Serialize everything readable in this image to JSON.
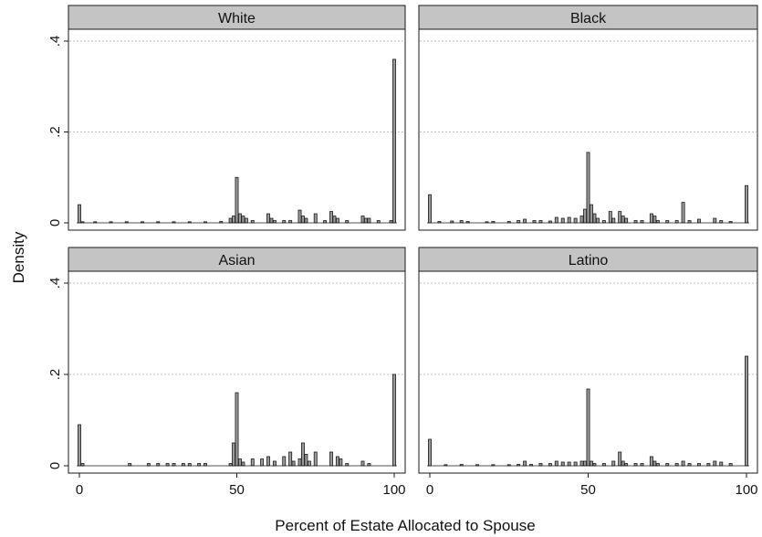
{
  "chart_data": {
    "type": "bar",
    "ylabel": "Density",
    "xlabel": "Percent of Estate Allocated to Spouse",
    "xlim": [
      0,
      100
    ],
    "ylim": [
      0,
      0.4
    ],
    "xticks": [
      0,
      50,
      100
    ],
    "yticks": [
      0,
      0.2,
      0.4
    ],
    "ytick_labels": [
      "0",
      ".2",
      ".4"
    ],
    "grid": "horizontal",
    "panels": [
      {
        "title": "White",
        "bars": [
          {
            "x": 0,
            "y": 0.04
          },
          {
            "x": 1,
            "y": 0.002
          },
          {
            "x": 5,
            "y": 0.002
          },
          {
            "x": 10,
            "y": 0.002
          },
          {
            "x": 15,
            "y": 0.002
          },
          {
            "x": 20,
            "y": 0.002
          },
          {
            "x": 25,
            "y": 0.002
          },
          {
            "x": 30,
            "y": 0.002
          },
          {
            "x": 35,
            "y": 0.002
          },
          {
            "x": 40,
            "y": 0.002
          },
          {
            "x": 45,
            "y": 0.003
          },
          {
            "x": 48,
            "y": 0.01
          },
          {
            "x": 49,
            "y": 0.015
          },
          {
            "x": 50,
            "y": 0.1
          },
          {
            "x": 51,
            "y": 0.02
          },
          {
            "x": 52,
            "y": 0.015
          },
          {
            "x": 53,
            "y": 0.01
          },
          {
            "x": 55,
            "y": 0.005
          },
          {
            "x": 60,
            "y": 0.02
          },
          {
            "x": 61,
            "y": 0.01
          },
          {
            "x": 62,
            "y": 0.005
          },
          {
            "x": 65,
            "y": 0.005
          },
          {
            "x": 67,
            "y": 0.005
          },
          {
            "x": 70,
            "y": 0.028
          },
          {
            "x": 71,
            "y": 0.015
          },
          {
            "x": 72,
            "y": 0.01
          },
          {
            "x": 75,
            "y": 0.02
          },
          {
            "x": 78,
            "y": 0.005
          },
          {
            "x": 80,
            "y": 0.025
          },
          {
            "x": 81,
            "y": 0.015
          },
          {
            "x": 82,
            "y": 0.01
          },
          {
            "x": 85,
            "y": 0.005
          },
          {
            "x": 90,
            "y": 0.015
          },
          {
            "x": 91,
            "y": 0.01
          },
          {
            "x": 92,
            "y": 0.01
          },
          {
            "x": 95,
            "y": 0.005
          },
          {
            "x": 99,
            "y": 0.005
          },
          {
            "x": 100,
            "y": 0.36
          }
        ]
      },
      {
        "title": "Black",
        "bars": [
          {
            "x": 0,
            "y": 0.062
          },
          {
            "x": 3,
            "y": 0.003
          },
          {
            "x": 7,
            "y": 0.004
          },
          {
            "x": 10,
            "y": 0.005
          },
          {
            "x": 12,
            "y": 0.003
          },
          {
            "x": 18,
            "y": 0.002
          },
          {
            "x": 20,
            "y": 0.003
          },
          {
            "x": 25,
            "y": 0.003
          },
          {
            "x": 28,
            "y": 0.005
          },
          {
            "x": 30,
            "y": 0.008
          },
          {
            "x": 33,
            "y": 0.005
          },
          {
            "x": 35,
            "y": 0.005
          },
          {
            "x": 38,
            "y": 0.004
          },
          {
            "x": 40,
            "y": 0.012
          },
          {
            "x": 42,
            "y": 0.01
          },
          {
            "x": 44,
            "y": 0.012
          },
          {
            "x": 46,
            "y": 0.01
          },
          {
            "x": 48,
            "y": 0.015
          },
          {
            "x": 49,
            "y": 0.03
          },
          {
            "x": 50,
            "y": 0.155
          },
          {
            "x": 51,
            "y": 0.04
          },
          {
            "x": 52,
            "y": 0.02
          },
          {
            "x": 53,
            "y": 0.01
          },
          {
            "x": 55,
            "y": 0.005
          },
          {
            "x": 57,
            "y": 0.025
          },
          {
            "x": 58,
            "y": 0.01
          },
          {
            "x": 60,
            "y": 0.025
          },
          {
            "x": 61,
            "y": 0.015
          },
          {
            "x": 62,
            "y": 0.01
          },
          {
            "x": 65,
            "y": 0.005
          },
          {
            "x": 67,
            "y": 0.005
          },
          {
            "x": 70,
            "y": 0.02
          },
          {
            "x": 71,
            "y": 0.015
          },
          {
            "x": 72,
            "y": 0.005
          },
          {
            "x": 75,
            "y": 0.005
          },
          {
            "x": 78,
            "y": 0.005
          },
          {
            "x": 80,
            "y": 0.045
          },
          {
            "x": 82,
            "y": 0.005
          },
          {
            "x": 85,
            "y": 0.008
          },
          {
            "x": 90,
            "y": 0.01
          },
          {
            "x": 92,
            "y": 0.005
          },
          {
            "x": 95,
            "y": 0.003
          },
          {
            "x": 100,
            "y": 0.082
          }
        ]
      },
      {
        "title": "Asian",
        "bars": [
          {
            "x": 0,
            "y": 0.09
          },
          {
            "x": 1,
            "y": 0.005
          },
          {
            "x": 16,
            "y": 0.005
          },
          {
            "x": 22,
            "y": 0.005
          },
          {
            "x": 25,
            "y": 0.005
          },
          {
            "x": 28,
            "y": 0.005
          },
          {
            "x": 30,
            "y": 0.005
          },
          {
            "x": 33,
            "y": 0.005
          },
          {
            "x": 35,
            "y": 0.005
          },
          {
            "x": 38,
            "y": 0.005
          },
          {
            "x": 40,
            "y": 0.005
          },
          {
            "x": 48,
            "y": 0.005
          },
          {
            "x": 49,
            "y": 0.05
          },
          {
            "x": 50,
            "y": 0.16
          },
          {
            "x": 51,
            "y": 0.015
          },
          {
            "x": 52,
            "y": 0.008
          },
          {
            "x": 55,
            "y": 0.015
          },
          {
            "x": 58,
            "y": 0.015
          },
          {
            "x": 60,
            "y": 0.02
          },
          {
            "x": 62,
            "y": 0.01
          },
          {
            "x": 65,
            "y": 0.02
          },
          {
            "x": 67,
            "y": 0.03
          },
          {
            "x": 68,
            "y": 0.01
          },
          {
            "x": 70,
            "y": 0.015
          },
          {
            "x": 71,
            "y": 0.05
          },
          {
            "x": 72,
            "y": 0.025
          },
          {
            "x": 73,
            "y": 0.01
          },
          {
            "x": 75,
            "y": 0.03
          },
          {
            "x": 80,
            "y": 0.03
          },
          {
            "x": 82,
            "y": 0.02
          },
          {
            "x": 83,
            "y": 0.015
          },
          {
            "x": 85,
            "y": 0.005
          },
          {
            "x": 90,
            "y": 0.01
          },
          {
            "x": 92,
            "y": 0.005
          },
          {
            "x": 100,
            "y": 0.2
          }
        ]
      },
      {
        "title": "Latino",
        "bars": [
          {
            "x": 0,
            "y": 0.058
          },
          {
            "x": 5,
            "y": 0.002
          },
          {
            "x": 10,
            "y": 0.003
          },
          {
            "x": 15,
            "y": 0.002
          },
          {
            "x": 20,
            "y": 0.002
          },
          {
            "x": 25,
            "y": 0.002
          },
          {
            "x": 28,
            "y": 0.003
          },
          {
            "x": 30,
            "y": 0.01
          },
          {
            "x": 32,
            "y": 0.003
          },
          {
            "x": 35,
            "y": 0.005
          },
          {
            "x": 38,
            "y": 0.005
          },
          {
            "x": 40,
            "y": 0.01
          },
          {
            "x": 42,
            "y": 0.008
          },
          {
            "x": 44,
            "y": 0.008
          },
          {
            "x": 46,
            "y": 0.008
          },
          {
            "x": 48,
            "y": 0.01
          },
          {
            "x": 49,
            "y": 0.01
          },
          {
            "x": 50,
            "y": 0.168
          },
          {
            "x": 51,
            "y": 0.01
          },
          {
            "x": 52,
            "y": 0.005
          },
          {
            "x": 55,
            "y": 0.005
          },
          {
            "x": 58,
            "y": 0.01
          },
          {
            "x": 60,
            "y": 0.03
          },
          {
            "x": 61,
            "y": 0.01
          },
          {
            "x": 62,
            "y": 0.005
          },
          {
            "x": 65,
            "y": 0.005
          },
          {
            "x": 67,
            "y": 0.005
          },
          {
            "x": 70,
            "y": 0.02
          },
          {
            "x": 71,
            "y": 0.01
          },
          {
            "x": 72,
            "y": 0.005
          },
          {
            "x": 75,
            "y": 0.005
          },
          {
            "x": 78,
            "y": 0.005
          },
          {
            "x": 80,
            "y": 0.01
          },
          {
            "x": 82,
            "y": 0.005
          },
          {
            "x": 85,
            "y": 0.005
          },
          {
            "x": 88,
            "y": 0.005
          },
          {
            "x": 90,
            "y": 0.01
          },
          {
            "x": 92,
            "y": 0.008
          },
          {
            "x": 95,
            "y": 0.005
          },
          {
            "x": 100,
            "y": 0.24
          }
        ]
      }
    ]
  },
  "colors": {
    "bar_fill": "#9a9a9a",
    "bar_stroke": "#1a1a1a",
    "strip_fill": "#c4c4c4",
    "grid": "#bdbdbd",
    "frame": "#1a1a1a"
  }
}
